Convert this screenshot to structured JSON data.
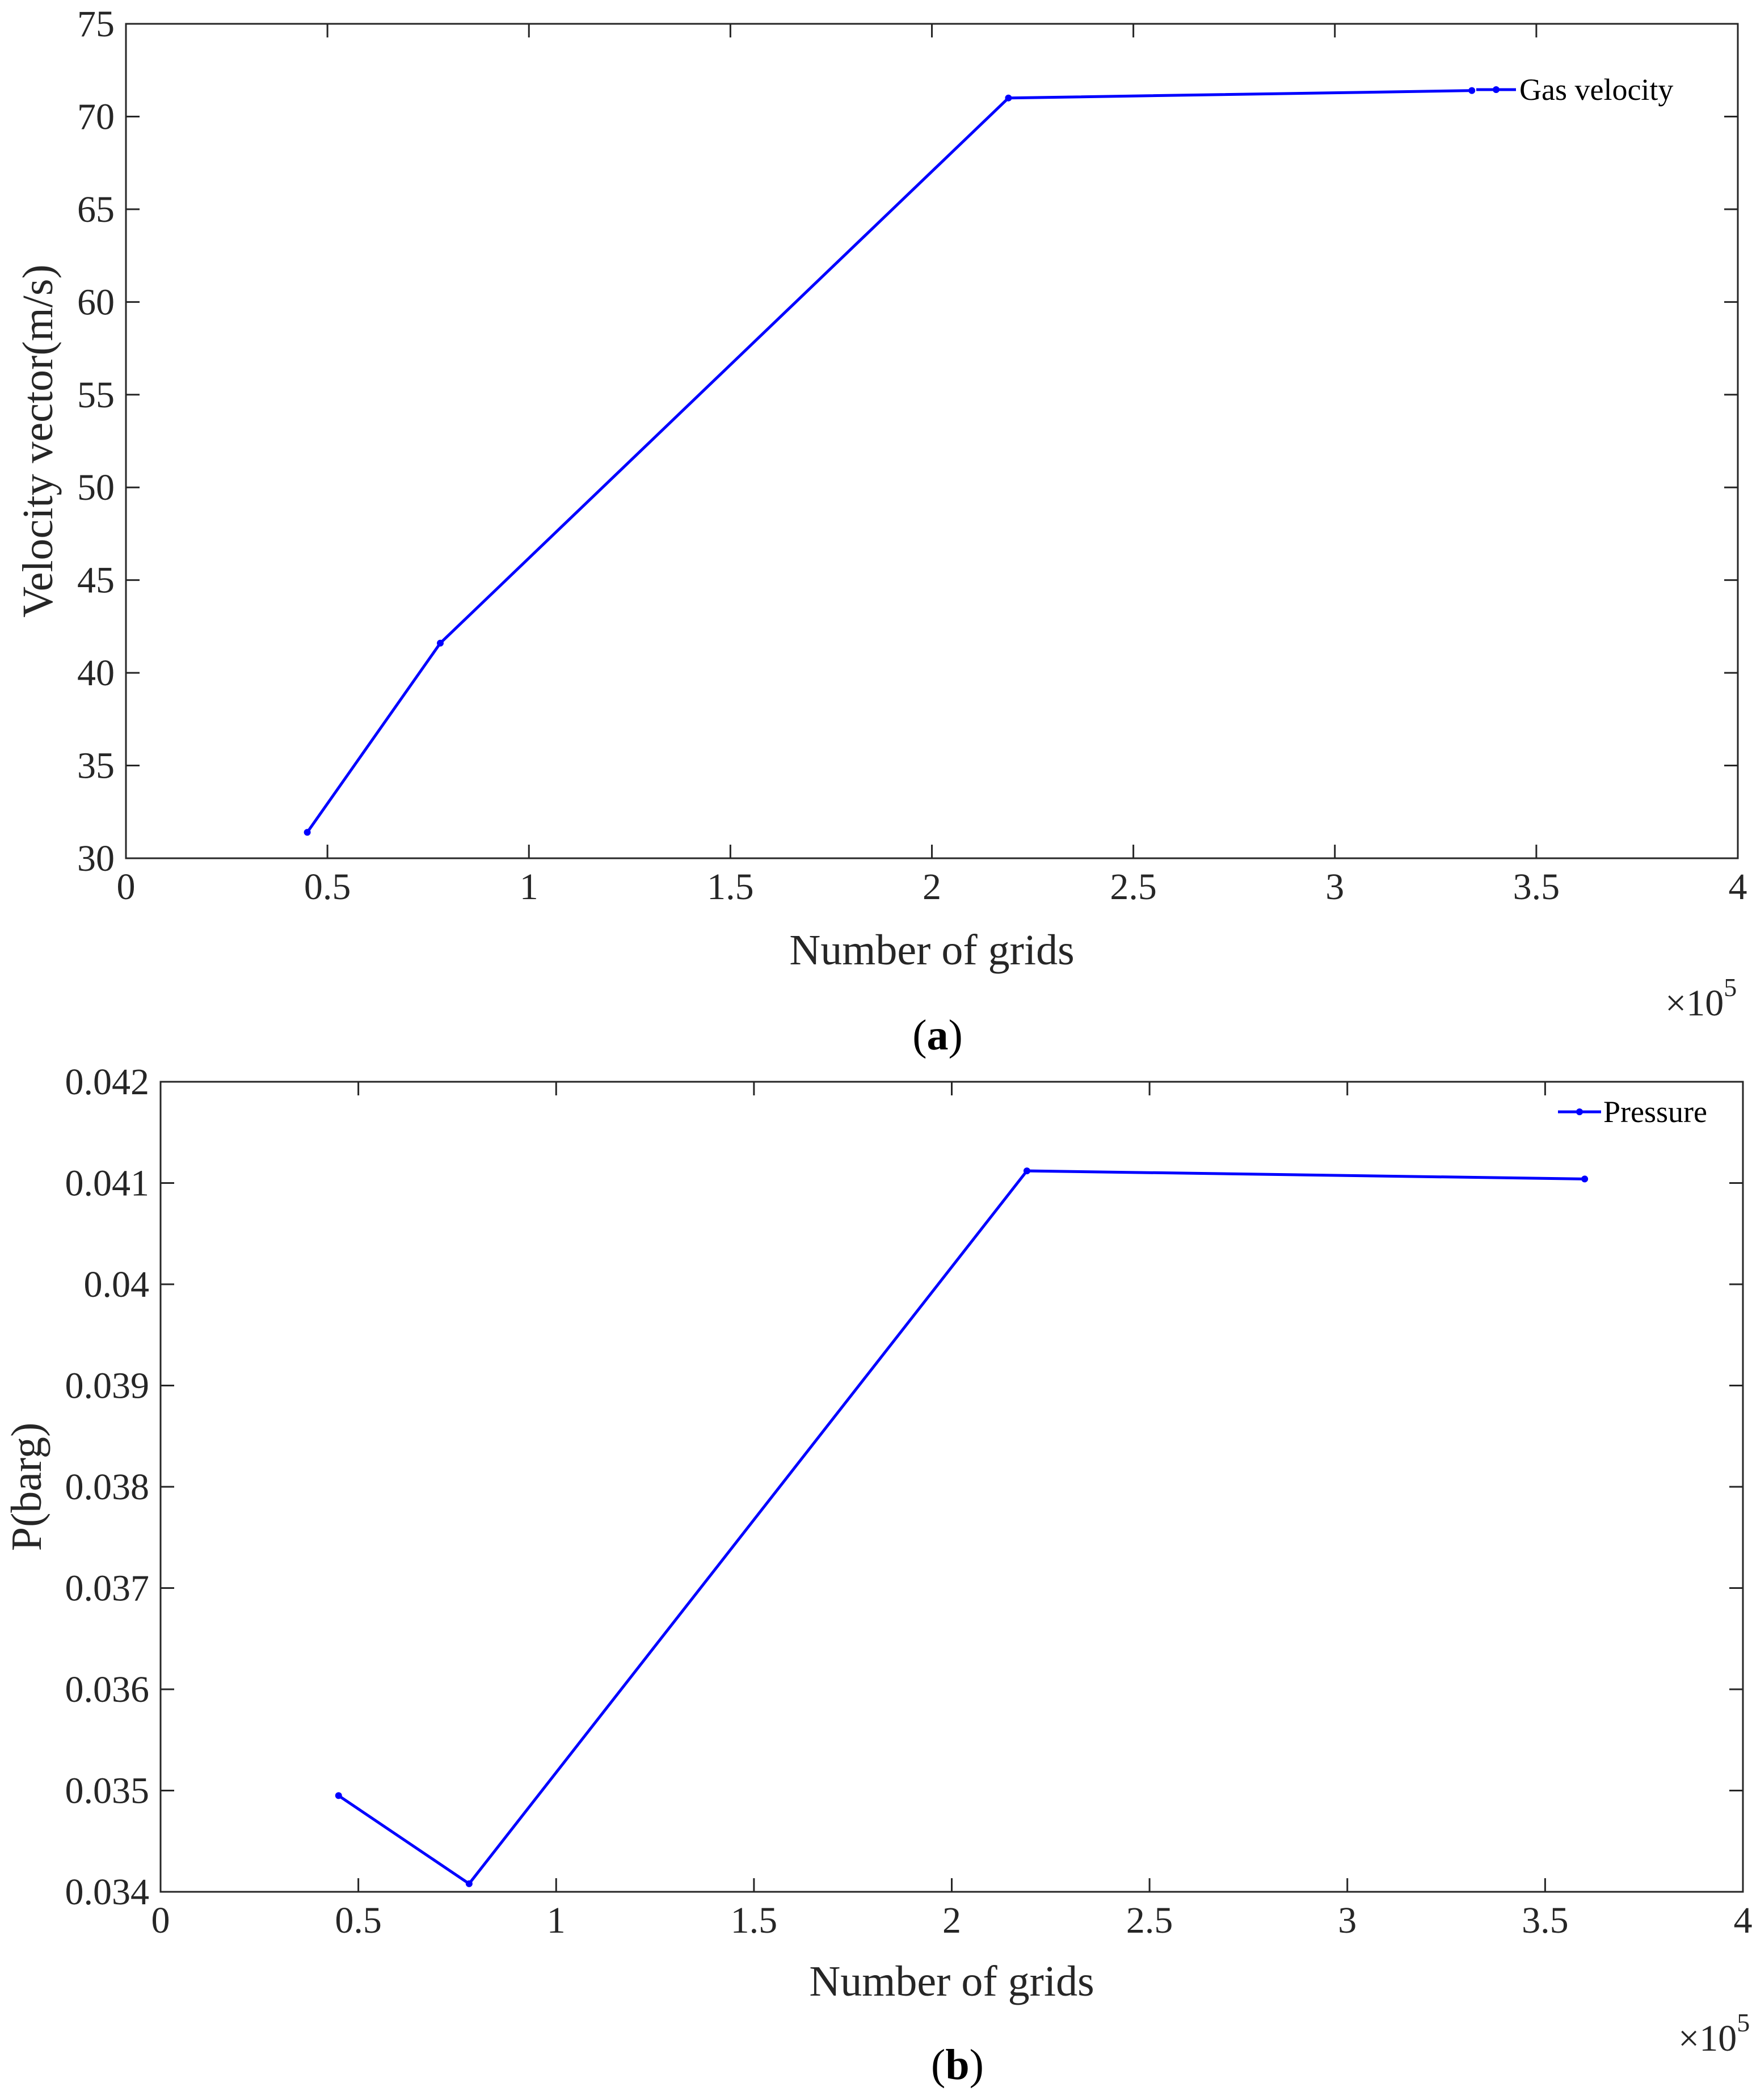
{
  "chart_data": [
    {
      "type": "line",
      "panel_label": "a",
      "xlabel": "Number of grids",
      "ylabel": "Velocity vector(m/s)",
      "x_multiplier": "×10",
      "x_multiplier_exp": "5",
      "xlim": [
        0,
        4
      ],
      "ylim": [
        30,
        75
      ],
      "xticks": [
        0,
        0.5,
        1,
        1.5,
        2,
        2.5,
        3,
        3.5,
        4
      ],
      "xtick_labels": [
        "0",
        "0.5",
        "1",
        "1.5",
        "2",
        "2.5",
        "3",
        "3.5",
        "4"
      ],
      "yticks": [
        30,
        35,
        40,
        45,
        50,
        55,
        60,
        65,
        70,
        75
      ],
      "ytick_labels": [
        "30",
        "35",
        "40",
        "45",
        "50",
        "55",
        "60",
        "65",
        "70",
        "75"
      ],
      "grid": false,
      "legend_position": "top-right",
      "series": [
        {
          "name": "Gas velocity",
          "color": "#0000ff",
          "x": [
            0.45,
            0.78,
            2.19,
            3.34
          ],
          "y": [
            31.4,
            41.6,
            71.0,
            71.4
          ]
        }
      ]
    },
    {
      "type": "line",
      "panel_label": "b",
      "xlabel": "Number of grids",
      "ylabel": "P(barg)",
      "x_multiplier": "×10",
      "x_multiplier_exp": "5",
      "xlim": [
        0,
        4
      ],
      "ylim": [
        0.034,
        0.042
      ],
      "xticks": [
        0,
        0.5,
        1,
        1.5,
        2,
        2.5,
        3,
        3.5,
        4
      ],
      "xtick_labels": [
        "0",
        "0.5",
        "1",
        "1.5",
        "2",
        "2.5",
        "3",
        "3.5",
        "4"
      ],
      "yticks": [
        0.034,
        0.035,
        0.036,
        0.037,
        0.038,
        0.039,
        0.04,
        0.041,
        0.042
      ],
      "ytick_labels": [
        "0.034",
        "0.035",
        "0.036",
        "0.037",
        "0.038",
        "0.039",
        "0.04",
        "0.041",
        "0.042"
      ],
      "grid": false,
      "legend_position": "top-right",
      "series": [
        {
          "name": "Pressure",
          "color": "#0000ff",
          "x": [
            0.45,
            0.78,
            2.19,
            3.6
          ],
          "y": [
            0.03495,
            0.03408,
            0.04112,
            0.04104
          ]
        }
      ]
    }
  ]
}
